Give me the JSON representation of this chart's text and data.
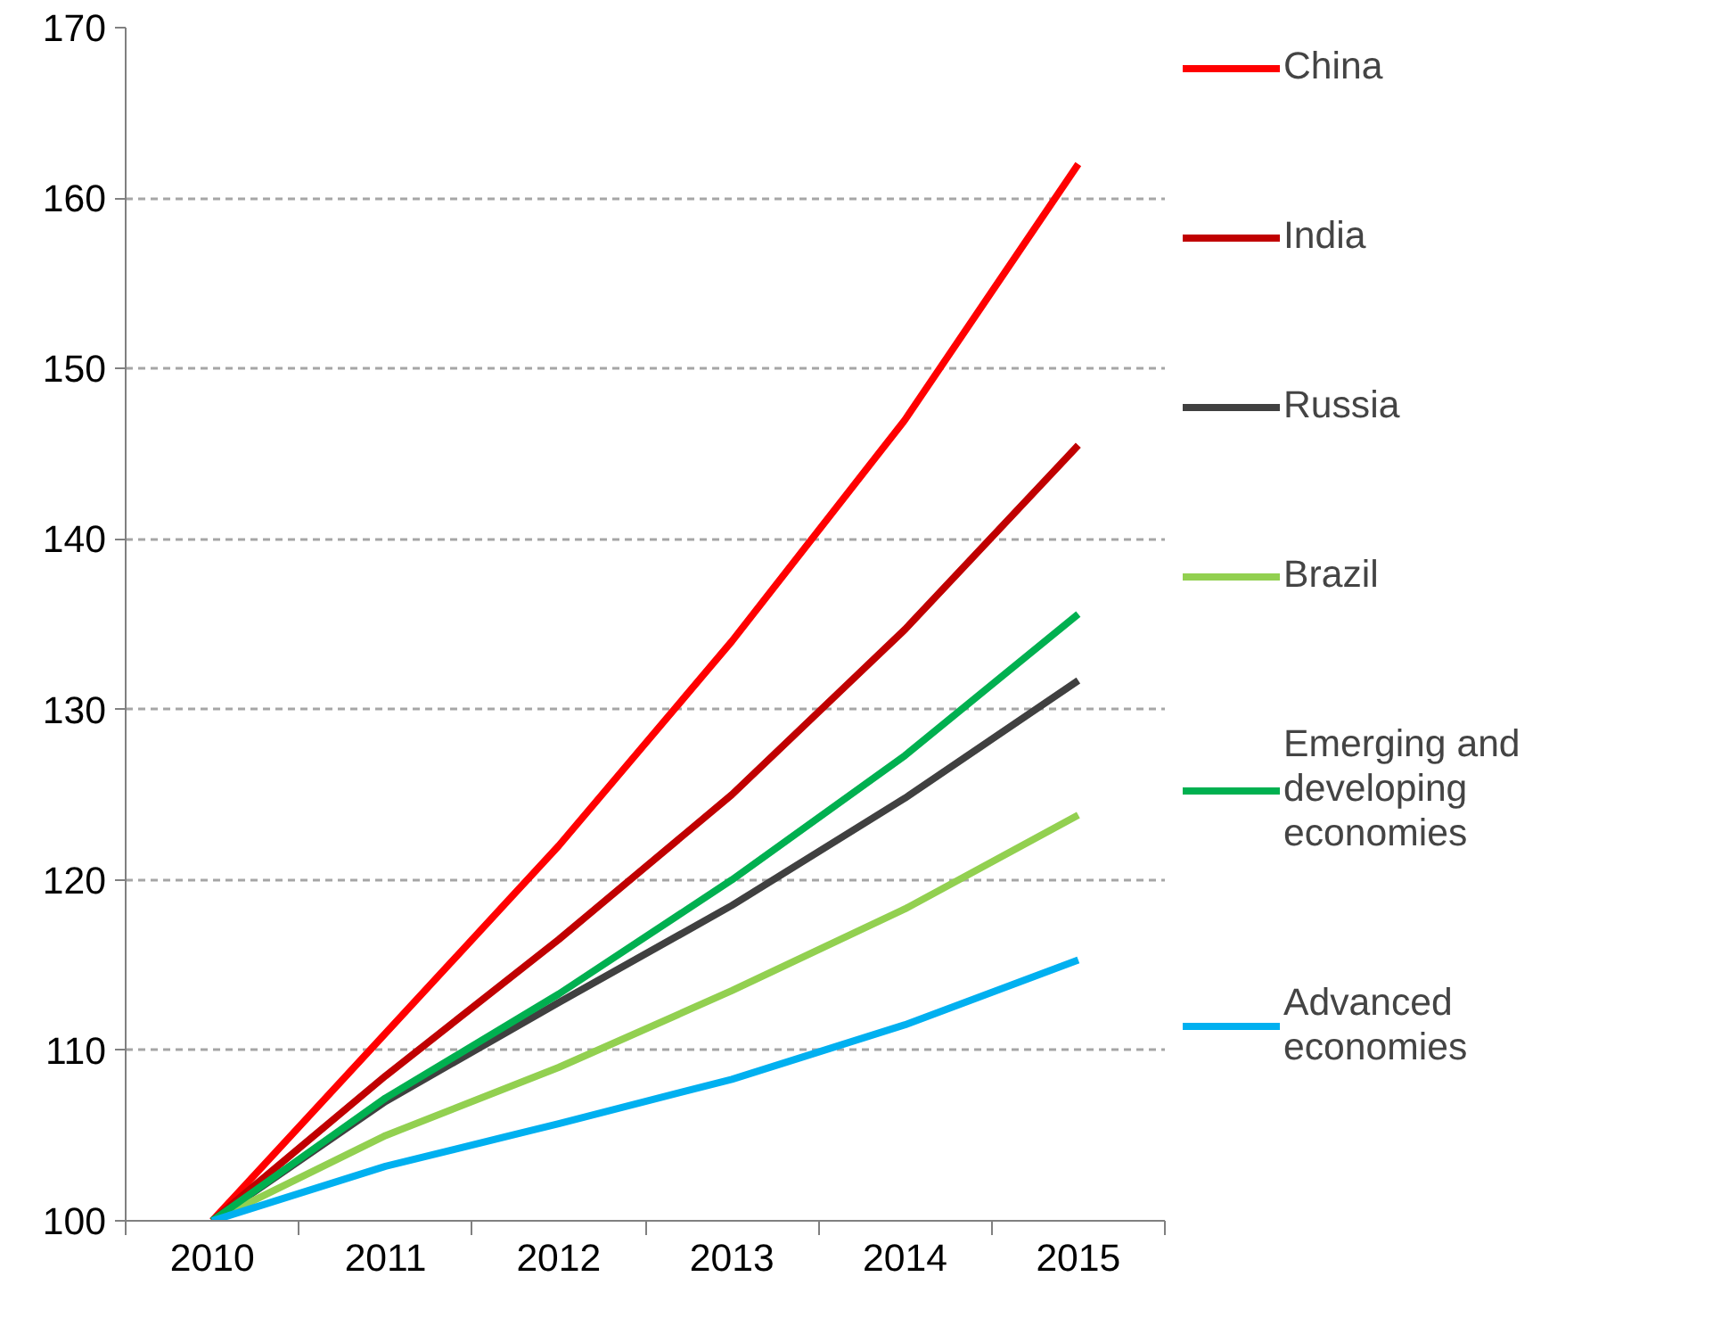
{
  "chart_data": {
    "type": "line",
    "categories": [
      "2010",
      "2011",
      "2012",
      "2013",
      "2014",
      "2015"
    ],
    "series": [
      {
        "name": "China",
        "color": "#ff0000",
        "values": [
          100,
          111,
          122,
          134,
          147,
          162
        ]
      },
      {
        "name": "India",
        "color": "#c00000",
        "values": [
          100,
          108.5,
          116.5,
          125,
          134.7,
          145.5
        ]
      },
      {
        "name": "Russia",
        "color": "#404040",
        "values": [
          100,
          107,
          112.8,
          118.5,
          124.8,
          131.7
        ]
      },
      {
        "name": "Brazil",
        "color": "#92d050",
        "values": [
          100,
          105,
          109,
          113.5,
          118.3,
          123.8
        ]
      },
      {
        "name": "Emerging and developing economies",
        "color": "#00b050",
        "values": [
          100,
          107.2,
          113.3,
          120,
          127.3,
          135.6
        ]
      },
      {
        "name": "Advanced economies",
        "color": "#00b0f0",
        "values": [
          100,
          103.2,
          105.7,
          108.3,
          111.5,
          115.3
        ]
      }
    ],
    "ylim": [
      100,
      170
    ],
    "yticks": [
      100,
      110,
      120,
      130,
      140,
      150,
      160,
      170
    ],
    "grid": "y",
    "legend": "right",
    "marker": "none",
    "line_style": "solid"
  }
}
